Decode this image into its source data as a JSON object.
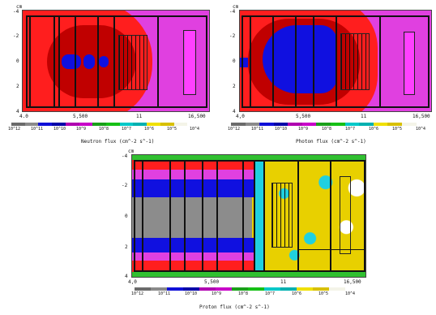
{
  "colors": {
    "scale": [
      "#6b6b6b",
      "#8a8a8a",
      "#1010d8",
      "#0000a8",
      "#b000b0",
      "#c800c8",
      "#1aa01a",
      "#16c016",
      "#00c8c8",
      "#00b0b0",
      "#f0e000",
      "#d8c000",
      "#f4f4e8",
      "#ffffff"
    ],
    "red": "#ff1e1e",
    "darkred": "#c00000",
    "magenta": "#e040e0",
    "pink": "#ff40ff",
    "blue": "#1010e0",
    "gray": "#8c8c8c",
    "yellow": "#e8d000",
    "cyan": "#20d0e0",
    "green": "#30c030"
  },
  "panels": [
    {
      "unit_label": "cm",
      "y_ticks": [
        "-4",
        "-2",
        "0",
        "2",
        "4"
      ],
      "x_ticks": [
        "4.0",
        "5,500",
        "11",
        "16,500"
      ],
      "colorbar_labels": [
        "10^12",
        "10^11",
        "10^10",
        "10^9",
        "10^8",
        "10^7",
        "10^6",
        "10^5",
        "10^4"
      ],
      "caption": "Neutron flux (cm^-2 s^-1)"
    },
    {
      "unit_label": "cm",
      "y_ticks": [
        "-4",
        "-2",
        "0",
        "2",
        "4"
      ],
      "x_ticks": [
        "4,0",
        "5,500",
        "11",
        "16,500"
      ],
      "colorbar_labels": [
        "10^12",
        "10^11",
        "10^10",
        "10^9",
        "10^8",
        "10^7",
        "10^6",
        "10^5",
        "10^4"
      ],
      "caption": "Photon flux (cm^-2 s^-1)"
    },
    {
      "unit_label": "cm",
      "y_ticks": [
        "-4",
        "-2",
        "0",
        "2",
        "4"
      ],
      "x_ticks": [
        "4,0",
        "5,500",
        "11",
        "16,500"
      ],
      "colorbar_labels": [
        "10^12",
        "10^11",
        "10^10",
        "10^9",
        "10^8",
        "10^7",
        "10^6",
        "10^5",
        "10^4"
      ],
      "caption": "Proton flux (cm^-2 s^-1)"
    }
  ]
}
